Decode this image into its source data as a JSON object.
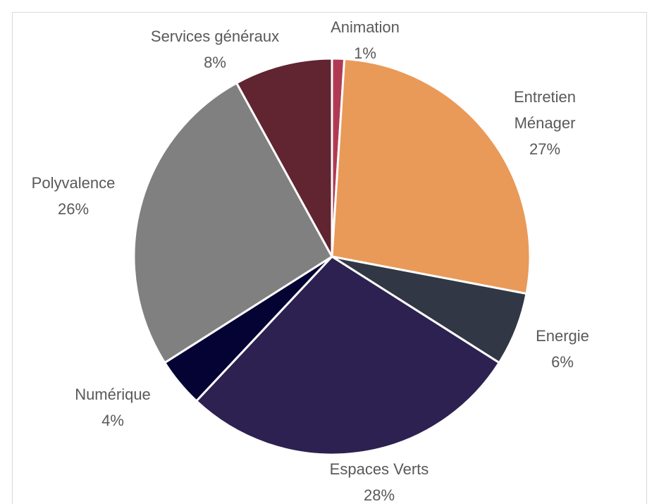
{
  "chart_data": {
    "type": "pie",
    "title": "",
    "legend": "none",
    "label_format": "category-and-percent",
    "slices": [
      {
        "label": "Animation",
        "value": 1,
        "percent_label": "1%",
        "color": "#b03a54",
        "label_lines": [
          "Animation"
        ]
      },
      {
        "label": "Entretien Ménager",
        "value": 27,
        "percent_label": "27%",
        "color": "#e99a58",
        "label_lines": [
          "Entretien",
          "Ménager"
        ]
      },
      {
        "label": "Energie",
        "value": 6,
        "percent_label": "6%",
        "color": "#313744",
        "label_lines": [
          "Energie"
        ]
      },
      {
        "label": "Espaces Verts",
        "value": 28,
        "percent_label": "28%",
        "color": "#2c2150",
        "label_lines": [
          "Espaces Verts"
        ]
      },
      {
        "label": "Numérique",
        "value": 4,
        "percent_label": "4%",
        "color": "#050334",
        "label_lines": [
          "Numérique"
        ]
      },
      {
        "label": "Polyvalence",
        "value": 26,
        "percent_label": "26%",
        "color": "#808080",
        "label_lines": [
          "Polyvalence"
        ]
      },
      {
        "label": "Services généraux",
        "value": 8,
        "percent_label": "8%",
        "color": "#612431",
        "label_lines": [
          "Services généraux"
        ]
      }
    ]
  }
}
